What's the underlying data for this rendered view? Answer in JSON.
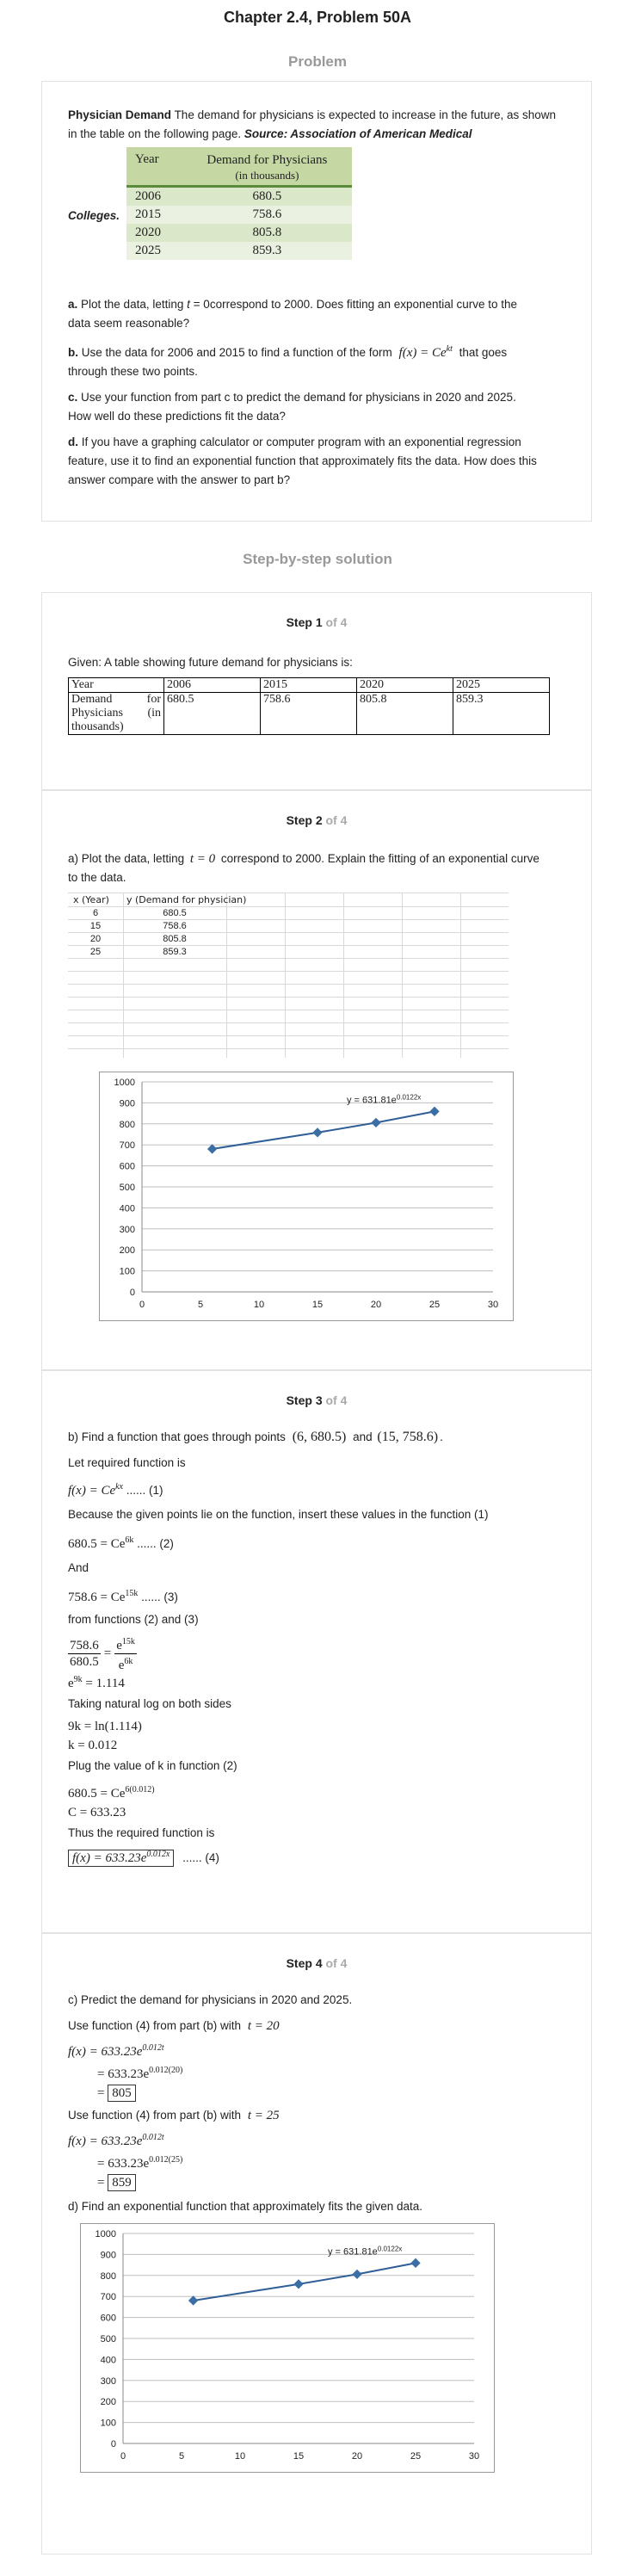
{
  "header": {
    "chapter": "Chapter 2.4, Problem 50A",
    "problem_title": "Problem",
    "solution_title": "Step-by-step solution"
  },
  "problem": {
    "bold_title": "Physician Demand",
    "intro": "The demand for physicians is expected to increase in the future, as shown in the table on the following page.",
    "source": "Source: Association of American Medical",
    "colleges": "Colleges.",
    "table": {
      "col1": "Year",
      "col2": "Demand for Physicians",
      "col2_sub": "(in thousands)",
      "rows": [
        [
          "2006",
          "680.5"
        ],
        [
          "2015",
          "758.6"
        ],
        [
          "2020",
          "805.8"
        ],
        [
          "2025",
          "859.3"
        ]
      ]
    },
    "a_label": "a.",
    "a_text": "Plot the data, letting",
    "a_var": "t",
    "a_text2": "= 0correspond to 2000. Does fitting an exponential curve to the",
    "a_text3": "data seem reasonable?",
    "b_label": "b.",
    "b_text": "Use the data for 2006 and 2015 to find a function of the form",
    "b_formula": "f(x) = Ce",
    "b_exp": "kt",
    "b_text2": "that goes",
    "b_text3": "through these two points.",
    "c_label": "c.",
    "c_text": "Use your function from part c to predict the demand for physicians in 2020 and 2025.",
    "c_text2": "How well do these predictions fit the data?",
    "d_label": "d.",
    "d_text": "If you have a graphing calculator or computer program with an exponential regression",
    "d_text2": "feature, use it to find an exponential function that approximately fits the data. How does this",
    "d_text3": "answer compare with the answer to part b?"
  },
  "step1": {
    "label": "Step 1",
    "of": "of 4",
    "given": "Given: A table showing future demand for physicians is:",
    "row1": [
      "Year",
      "2006",
      "2015",
      "2020",
      "2025"
    ],
    "row2_label_a": "Demand",
    "row2_label_b": "for",
    "row2_label_c": "Physicians",
    "row2_label_d": "(in",
    "row2_label_e": "thousands)",
    "row2_vals": [
      "680.5",
      "758.6",
      "805.8",
      "859.3"
    ]
  },
  "step2": {
    "label": "Step 2",
    "of": "of 4",
    "text1": "a) Plot the data, letting",
    "var": "t = 0",
    "text2": "correspond to 2000. Explain the fitting of an exponential curve",
    "text3": "to the data.",
    "sheet_head": [
      "x (Year)",
      "y (Demand for physician)"
    ],
    "sheet_rows": [
      [
        "6",
        "680.5"
      ],
      [
        "15",
        "758.6"
      ],
      [
        "20",
        "805.8"
      ],
      [
        "25",
        "859.3"
      ]
    ]
  },
  "chart_data": [
    {
      "type": "scatter",
      "x": [
        6,
        15,
        20,
        25
      ],
      "y": [
        680.5,
        758.6,
        805.8,
        859.3
      ],
      "xlim": [
        0,
        30
      ],
      "ylim": [
        0,
        1000
      ],
      "xticks": [
        "0",
        "5",
        "10",
        "15",
        "20",
        "25",
        "30"
      ],
      "yticks": [
        "0",
        "100",
        "200",
        "300",
        "400",
        "500",
        "600",
        "700",
        "800",
        "900",
        "1000"
      ],
      "trendline_label": "y = 631.81e",
      "trendline_exp": "0.0122x",
      "grid": true
    },
    {
      "type": "scatter",
      "x": [
        6,
        15,
        20,
        25
      ],
      "y": [
        680.5,
        758.6,
        805.8,
        859.3
      ],
      "xlim": [
        0,
        30
      ],
      "ylim": [
        0,
        1000
      ],
      "xticks": [
        "0",
        "5",
        "10",
        "15",
        "20",
        "25",
        "30"
      ],
      "yticks": [
        "0",
        "100",
        "200",
        "300",
        "400",
        "500",
        "600",
        "700",
        "800",
        "900",
        "1000"
      ],
      "trendline_label": "y = 631.81e",
      "trendline_exp": "0.0122x",
      "grid": true
    }
  ],
  "step3": {
    "label": "Step 3",
    "of": "of 4",
    "b_text": "b) Find a function that goes through points",
    "pt1": "(6, 680.5)",
    "and": "and",
    "pt2": "(15, 758.6)",
    "dot": ".",
    "let": "Let required function is",
    "eq1": "f(x) = Ce",
    "eq1_exp": "kx",
    "eq1_tag": "...... (1)",
    "because": "Because the given points lie on the function, insert these values in the function (1)",
    "eq2": "680.5 = Ce",
    "eq2_exp": "6k",
    "eq2_tag": "...... (2)",
    "and_word": "And",
    "eq3": "758.6 = Ce",
    "eq3_exp": "15k",
    "eq3_tag": "...... (3)",
    "from": "from functions (2) and (3)",
    "frac_num_l": "758.6",
    "frac_den_l": "680.5",
    "frac_num_r": "e",
    "frac_num_r_exp": "15k",
    "frac_den_r": "e",
    "frac_den_r_exp": "6k",
    "eq4": "e",
    "eq4_exp": "9k",
    "eq4_rhs": "= 1.114",
    "taking": "Taking natural log on both sides",
    "eq5": "9k = ln(1.114)",
    "eq6": "k = 0.012",
    "plug": "Plug the value of k in function (2)",
    "eq7": "680.5 = Ce",
    "eq7_exp": "6(0.012)",
    "eq8": "C = 633.23",
    "thus": "Thus the required function is",
    "eq9": "f(x) = 633.23e",
    "eq9_exp": "0.012x",
    "eq9_tag": "...... (4)"
  },
  "step4": {
    "label": "Step 4",
    "of": "of 4",
    "c_text": "c) Predict the demand for physicians in 2020 and 2025.",
    "use1": "Use function (4) from part (b) with",
    "t1": "t = 20",
    "f1": "f(x) = 633.23e",
    "f1_exp": "0.012t",
    "f2": "= 633.23e",
    "f2_exp": "0.012(20)",
    "r1": "805",
    "use2": "Use function (4) from part (b) with",
    "t2": "t = 25",
    "f3": "f(x) = 633.23e",
    "f3_exp": "0.012t",
    "f4": "= 633.23e",
    "f4_exp": "0.012(25)",
    "r2": "859",
    "d_text": "d) Find an exponential function that approximately fits the given data."
  }
}
